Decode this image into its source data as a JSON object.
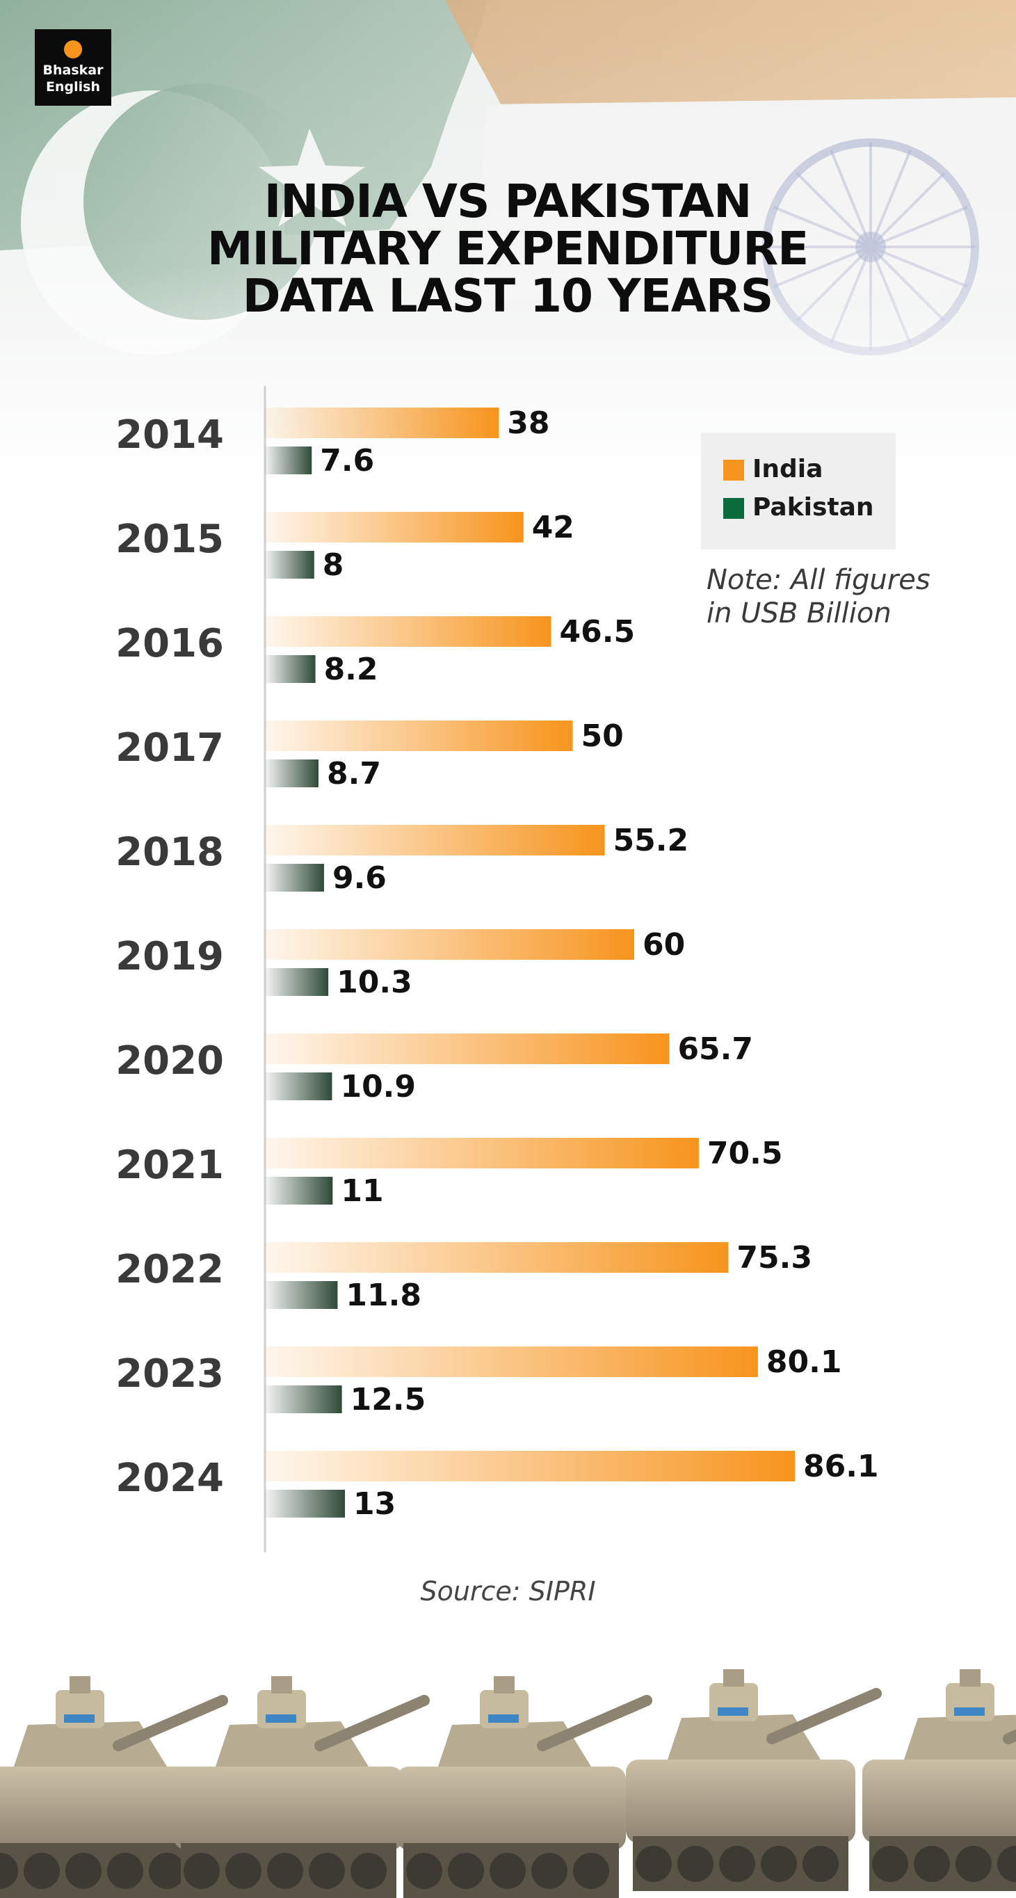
{
  "brand": {
    "line1": "Bhaskar",
    "line2": "English"
  },
  "title_lines": [
    "INDIA VS PAKISTAN",
    "MILITARY EXPENDITURE",
    "DATA LAST 10 YEARS"
  ],
  "legend": [
    {
      "label": "India",
      "color": "#f7941d"
    },
    {
      "label": "Pakistan",
      "color": "#0a6b3c"
    }
  ],
  "note": {
    "line1": "Note: All figures",
    "line2": "in USB Billion"
  },
  "source": "Source: SIPRI",
  "colors": {
    "india_bar": "#f7941d",
    "pakistan_bar": "#2f4a38",
    "axis": "#cfcfcf",
    "year_text": "#3a3a3a",
    "value_text": "#111111"
  },
  "chart_data": {
    "type": "bar",
    "orientation": "horizontal",
    "title": "INDIA VS PAKISTAN MILITARY EXPENDITURE DATA LAST 10 YEARS",
    "categories": [
      "2014",
      "2015",
      "2016",
      "2017",
      "2018",
      "2019",
      "2020",
      "2021",
      "2022",
      "2023",
      "2024"
    ],
    "series": [
      {
        "name": "India",
        "values": [
          38,
          42,
          46.5,
          50,
          55.2,
          60,
          65.7,
          70.5,
          75.3,
          80.1,
          86.1
        ],
        "labels": [
          "38",
          "42",
          "46.5",
          "50",
          "55.2",
          "60",
          "65.7",
          "70.5",
          "75.3",
          "80.1",
          "86.1"
        ]
      },
      {
        "name": "Pakistan",
        "values": [
          7.6,
          8,
          8.2,
          8.7,
          9.6,
          10.3,
          10.9,
          11,
          11.8,
          12.5,
          13
        ],
        "labels": [
          "7.6",
          "8",
          "8.2",
          "8.7",
          "9.6",
          "10.3",
          "10.9",
          "11",
          "11.8",
          "12.5",
          "13"
        ]
      }
    ],
    "legend_position": "top-right",
    "grid": false
  }
}
